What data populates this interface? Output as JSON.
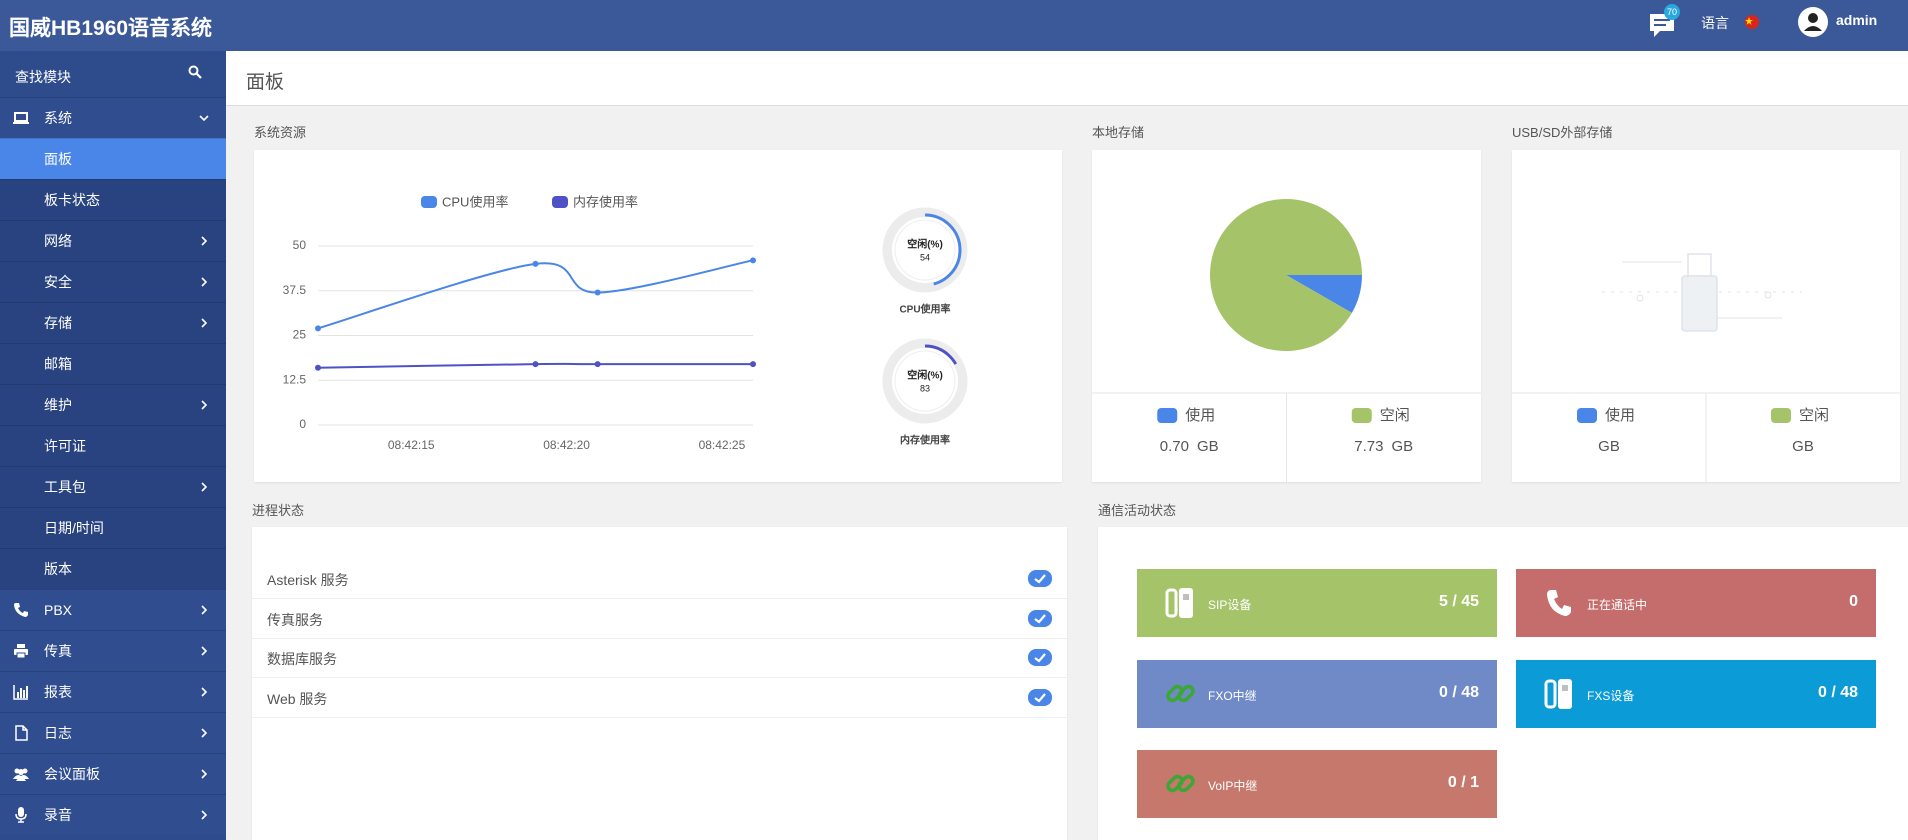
{
  "header": {
    "title": "国威HB1960语音系统",
    "notification_count": 70,
    "language": "语言",
    "user": "admin"
  },
  "sidebar": {
    "search": "查找模块",
    "items": [
      {
        "label": "系统",
        "icon": "laptop",
        "expanded": true,
        "children": [
          {
            "label": "面板",
            "active": true
          },
          {
            "label": "板卡状态"
          },
          {
            "label": "网络",
            "arrow": true
          },
          {
            "label": "安全",
            "arrow": true
          },
          {
            "label": "存储",
            "arrow": true
          },
          {
            "label": "邮箱"
          },
          {
            "label": "维护",
            "arrow": true
          },
          {
            "label": "许可证"
          },
          {
            "label": "工具包",
            "arrow": true
          },
          {
            "label": "日期/时间"
          },
          {
            "label": "版本"
          }
        ]
      },
      {
        "label": "PBX",
        "icon": "phone",
        "arrow": true
      },
      {
        "label": "传真",
        "icon": "print",
        "arrow": true
      },
      {
        "label": "报表",
        "icon": "chart",
        "arrow": true
      },
      {
        "label": "日志",
        "icon": "file",
        "arrow": true
      },
      {
        "label": "会议面板",
        "icon": "users",
        "arrow": true
      },
      {
        "label": "录音",
        "icon": "mic",
        "arrow": true
      }
    ]
  },
  "page_title": "面板",
  "chart_data": [
    {
      "type": "line",
      "title": "系统资源",
      "legend": "top",
      "grid": true,
      "x": [
        "08:42:12",
        "08:42:19",
        "08:42:21",
        "08:42:26"
      ],
      "xlim": [
        "08:42:12",
        "08:42:26"
      ],
      "xticks": [
        "08:42:15",
        "08:42:20",
        "08:42:25"
      ],
      "ylim": [
        0,
        50
      ],
      "yticks": [
        0,
        12.5,
        25,
        37.5,
        50
      ],
      "series": [
        {
          "name": "CPU使用率",
          "color": "#4a86e8",
          "values": [
            27,
            45,
            37,
            46
          ]
        },
        {
          "name": "内存使用率",
          "color": "#4f52c4",
          "values": [
            16,
            17,
            17,
            17
          ]
        }
      ]
    },
    {
      "type": "gauge",
      "title": "CPU使用率",
      "label": "空闲(%)",
      "value": 54,
      "ylim": [
        0,
        100
      ],
      "color": "#4a86e8"
    },
    {
      "type": "gauge",
      "title": "内存使用率",
      "label": "空闲(%)",
      "value": 83,
      "ylim": [
        0,
        100
      ],
      "color": "#4f52c4"
    },
    {
      "type": "pie",
      "title": "本地存储",
      "categories": [
        "使用",
        "空闲"
      ],
      "values": [
        0.7,
        7.73
      ],
      "value_labels": [
        "0.70",
        "7.73"
      ],
      "unit": "GB",
      "colors": [
        "#4a86e8",
        "#a5c46a"
      ]
    },
    {
      "type": "pie",
      "title": "USB/SD外部存储",
      "categories": [
        "使用",
        "空闲"
      ],
      "values": [
        null,
        null
      ],
      "unit": "GB",
      "colors": [
        "#4a86e8",
        "#a5c46a"
      ]
    }
  ],
  "process_status": {
    "title": "进程状态",
    "items": [
      "Asterisk 服务",
      "传真服务",
      "数据库服务",
      "Web 服务"
    ]
  },
  "comm_status": {
    "title": "通信活动状态",
    "tiles": [
      {
        "label": "SIP设备",
        "value": "5 / 45",
        "color": "#a5c46a",
        "icon": "device"
      },
      {
        "label": "正在通话中",
        "value": "0",
        "color": "#c56d6d",
        "icon": "phone"
      },
      {
        "label": "FXO中继",
        "value": "0 / 48",
        "color": "#6f8ac7",
        "icon": "link"
      },
      {
        "label": "FXS设备",
        "value": "0 / 48",
        "color": "#0b9bd6",
        "icon": "device"
      },
      {
        "label": "VoIP中继",
        "value": "0 / 1",
        "color": "#c5786b",
        "icon": "link"
      }
    ]
  }
}
